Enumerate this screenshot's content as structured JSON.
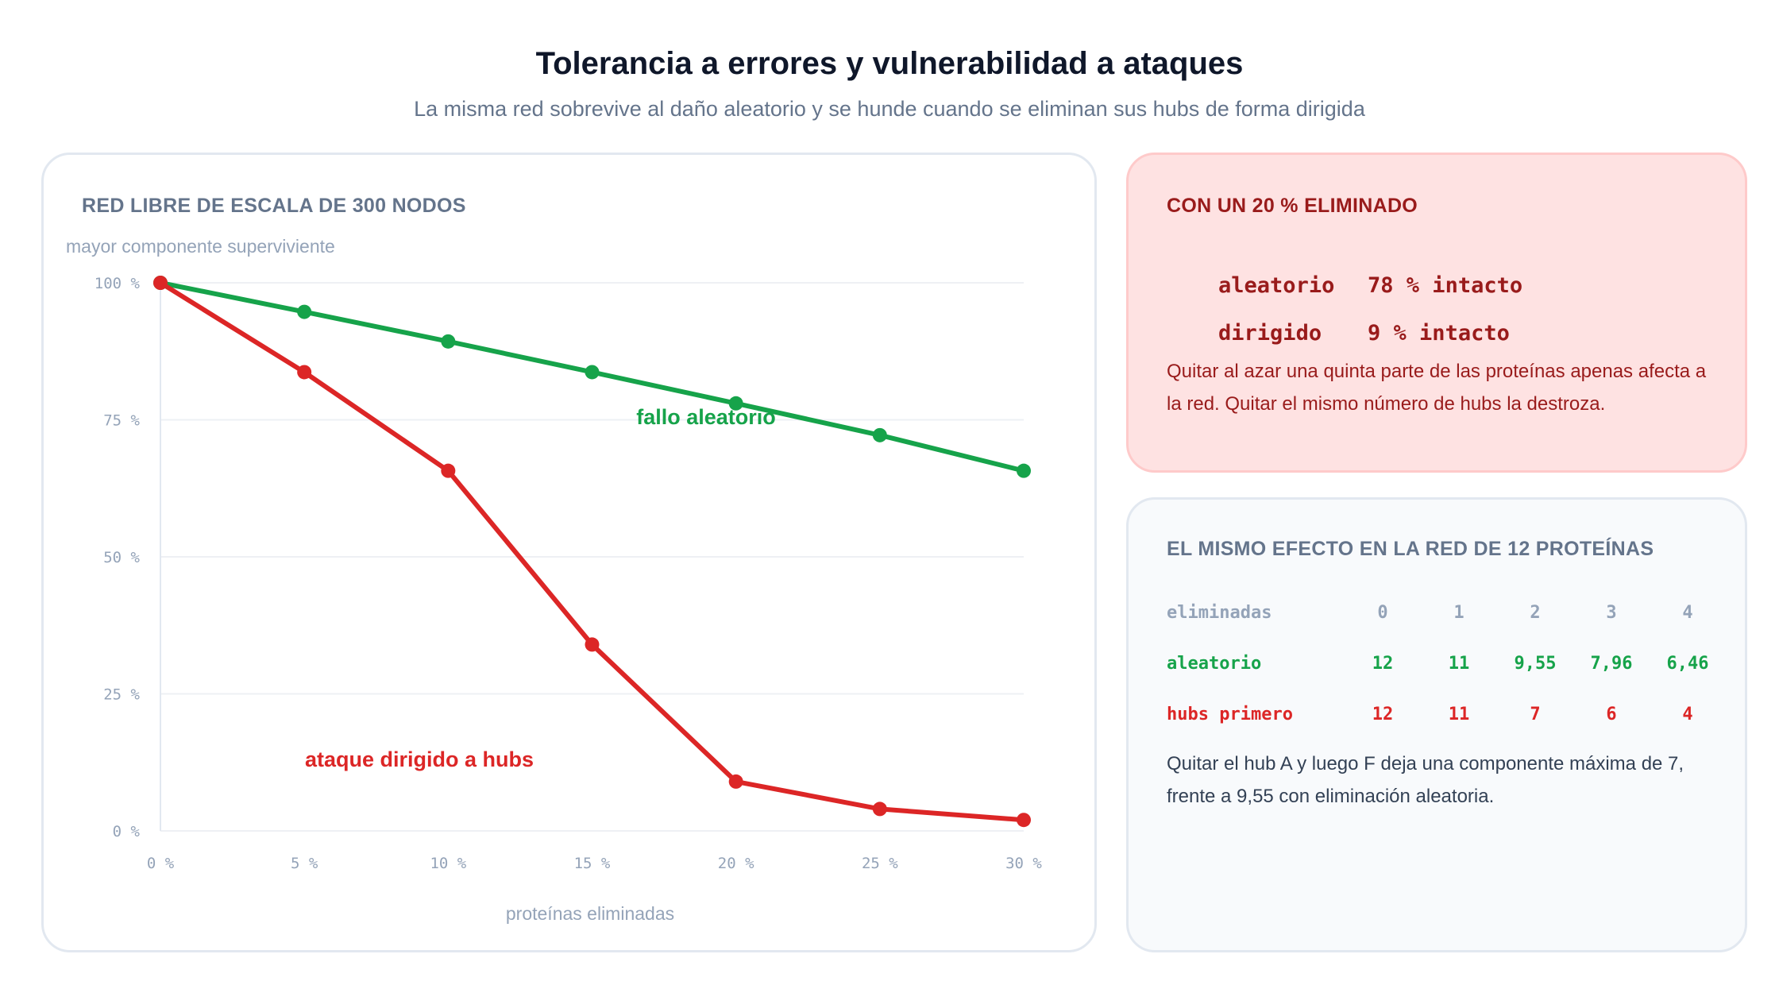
{
  "header": {
    "title": "Tolerancia a errores y vulnerabilidad a ataques",
    "subtitle": "La misma red sobrevive al daño aleatorio y se hunde cuando se eliminan sus hubs de forma dirigida"
  },
  "chart_data": {
    "type": "line",
    "title": "RED LIBRE DE ESCALA DE 300 NODOS",
    "ylabel": "mayor componente superviviente",
    "xlabel": "proteínas eliminadas",
    "x": [
      0,
      5,
      10,
      15,
      20,
      25,
      30
    ],
    "x_tick_labels": [
      "0 %",
      "5 %",
      "10 %",
      "15 %",
      "20 %",
      "25 %",
      "30 %"
    ],
    "y_ticks": [
      0,
      25,
      50,
      75,
      100
    ],
    "y_tick_labels": [
      "0 %",
      "25 %",
      "50 %",
      "75 %",
      "100 %"
    ],
    "xlim": [
      0,
      30
    ],
    "ylim": [
      0,
      100
    ],
    "grid": "horizontal",
    "series": [
      {
        "name": "fallo aleatorio",
        "color": "#16a34a",
        "values": [
          100,
          94.7,
          89.3,
          83.7,
          78,
          72.2,
          65.7
        ]
      },
      {
        "name": "ataque dirigido a hubs",
        "color": "#dc2626",
        "values": [
          100,
          83.7,
          65.7,
          34,
          9,
          4,
          2
        ]
      }
    ]
  },
  "alert": {
    "heading": "CON UN 20 % ELIMINADO",
    "rows": [
      {
        "label": "aleatorio",
        "value": "78 % intacto"
      },
      {
        "label": "dirigido",
        "value": "9 % intacto"
      }
    ],
    "note": "Quitar al azar una quinta parte de las proteínas apenas afecta a la red. Quitar el mismo número de hubs la destroza."
  },
  "comparison": {
    "heading": "EL MISMO EFECTO EN LA RED DE 12 PROTEÍNAS",
    "header_label": "eliminadas",
    "columns": [
      "0",
      "1",
      "2",
      "3",
      "4"
    ],
    "rows": [
      {
        "label": "aleatorio",
        "values": [
          "12",
          "11",
          "9,55",
          "7,96",
          "6,46"
        ]
      },
      {
        "label": "hubs primero",
        "values": [
          "12",
          "11",
          "7",
          "6",
          "4"
        ]
      }
    ],
    "note": "Quitar el hub A y luego F deja una componente máxima de 7, frente a 9,55 con eliminación aleatoria."
  },
  "colors": {
    "random": "#16a34a",
    "attack": "#dc2626",
    "alert_text": "#991b1b",
    "alert_bg": "#fee2e2"
  }
}
